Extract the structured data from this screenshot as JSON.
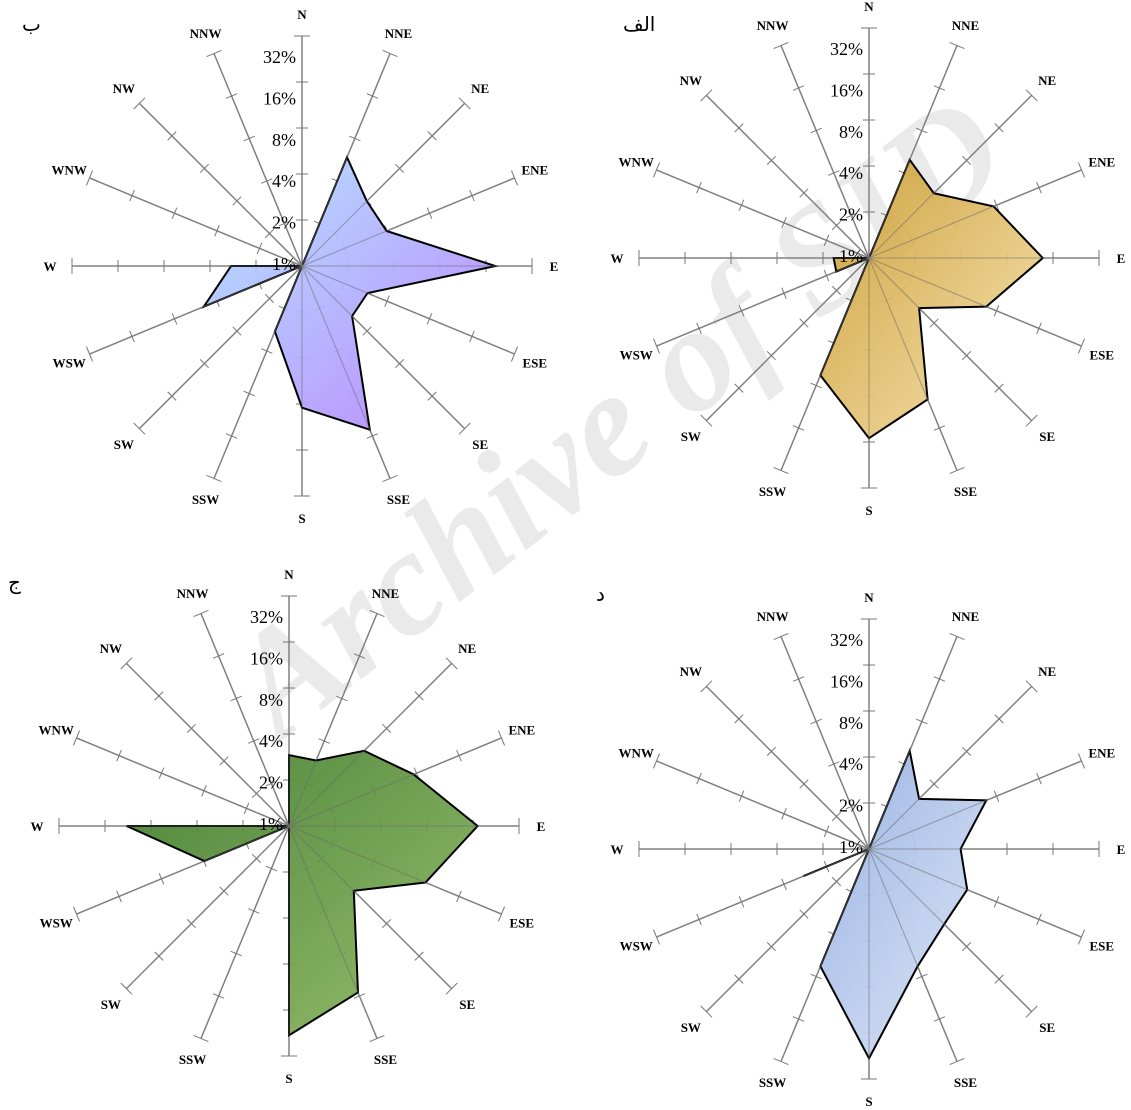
{
  "watermark": "Archive of SID",
  "chart_data": [
    {
      "type": "radar",
      "panel_label": "ب",
      "directions": [
        "N",
        "NNE",
        "NE",
        "ENE",
        "E",
        "ESE",
        "SE",
        "SSE",
        "S",
        "SSW",
        "SW",
        "WSW",
        "W",
        "WNW",
        "NW",
        "NNW"
      ],
      "ring_labels": [
        "1%",
        "2%",
        "4%",
        "8%",
        "16%",
        "32%"
      ],
      "scale": "log2",
      "values": [
        0,
        5,
        3,
        3,
        22,
        2,
        2,
        16,
        8,
        2,
        0,
        4,
        2,
        0,
        0,
        0
      ],
      "fill": [
        "#aee3ff",
        "#b77cff"
      ]
    },
    {
      "type": "radar",
      "panel_label": "الف",
      "directions": [
        "N",
        "NNE",
        "NE",
        "ENE",
        "E",
        "ESE",
        "SE",
        "SSE",
        "S",
        "SSW",
        "SW",
        "WSW",
        "W",
        "WNW",
        "NW",
        "NNW"
      ],
      "ring_labels": [
        "1%",
        "2%",
        "4%",
        "8%",
        "16%",
        "32%"
      ],
      "scale": "log2",
      "values": [
        0,
        4,
        3,
        7,
        15,
        6,
        2,
        10,
        17,
        6,
        0,
        1,
        1,
        0,
        0,
        0
      ],
      "fill": [
        "#c99a2c",
        "#f7e3b0"
      ]
    },
    {
      "type": "radar",
      "panel_label": "ج",
      "directions": [
        "N",
        "NNE",
        "NE",
        "ENE",
        "E",
        "ESE",
        "SE",
        "SSE",
        "S",
        "SSW",
        "SW",
        "WSW",
        "W",
        "WNW",
        "NW",
        "NNW"
      ],
      "ring_labels": [
        "1%",
        "2%",
        "4%",
        "8%",
        "16%",
        "32%"
      ],
      "scale": "log2",
      "values": [
        2,
        2,
        4,
        7,
        20,
        9,
        3,
        17,
        30,
        0,
        0,
        3,
        12,
        0,
        0,
        0
      ],
      "fill": [
        "#3d7a2a",
        "#8fb860"
      ]
    },
    {
      "type": "radar",
      "panel_label": "د",
      "directions": [
        "N",
        "NNE",
        "NE",
        "ENE",
        "E",
        "ESE",
        "SE",
        "SSE",
        "S",
        "SSW",
        "SW",
        "WSW",
        "W",
        "WNW",
        "NW",
        "NNW"
      ],
      "ring_labels": [
        "1%",
        "2%",
        "4%",
        "8%",
        "16%",
        "32%"
      ],
      "scale": "log2",
      "values": [
        0,
        4,
        2,
        6,
        3,
        4,
        4,
        6,
        30,
        6,
        0,
        2,
        0,
        0,
        0,
        0
      ],
      "fill": [
        "#8ea9e0",
        "#dce6f5"
      ]
    }
  ]
}
